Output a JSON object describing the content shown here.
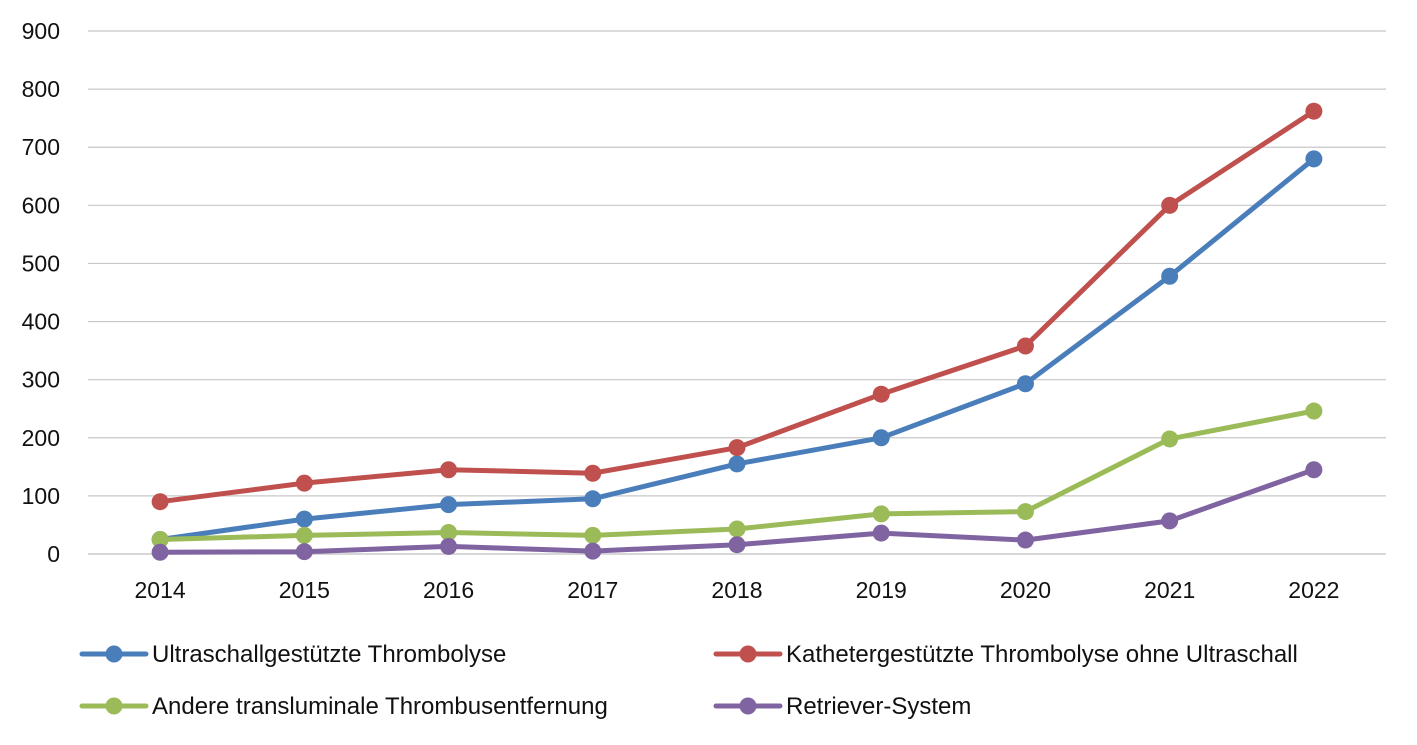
{
  "chart_data": {
    "type": "line",
    "categories": [
      "2014",
      "2015",
      "2016",
      "2017",
      "2018",
      "2019",
      "2020",
      "2021",
      "2022"
    ],
    "ylim": [
      0,
      900
    ],
    "yticks": [
      0,
      100,
      200,
      300,
      400,
      500,
      600,
      700,
      800,
      900
    ],
    "grid": true,
    "legend_position": "bottom",
    "series": [
      {
        "name": "Ultraschallgestützte Thrombolyse",
        "color": "#4a7ebb",
        "values": [
          25,
          60,
          85,
          95,
          155,
          200,
          293,
          478,
          680
        ]
      },
      {
        "name": "Kathetergestützte Thrombolyse ohne Ultraschall",
        "color": "#c0504d",
        "values": [
          90,
          122,
          145,
          139,
          183,
          275,
          358,
          600,
          762
        ]
      },
      {
        "name": "Andere transluminale Thrombusentfernung",
        "color": "#9bbb59",
        "values": [
          25,
          32,
          37,
          32,
          43,
          69,
          73,
          198,
          246
        ]
      },
      {
        "name": "Retriever-System",
        "color": "#8064a2",
        "values": [
          3,
          4,
          13,
          5,
          16,
          36,
          24,
          57,
          145
        ]
      }
    ]
  }
}
